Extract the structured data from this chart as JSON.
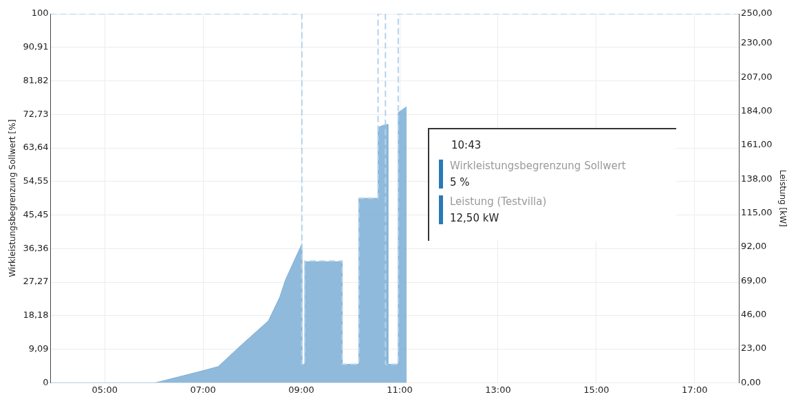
{
  "chart_data": {
    "type": "line",
    "ylabel": "Wirkleistungsbegrenzung Sollwert [%]",
    "y2label": "Leistung [kW]",
    "xlim": [
      3.9,
      17.9
    ],
    "xticks": [
      {
        "value": 5,
        "label": "05:00"
      },
      {
        "value": 7,
        "label": "07:00"
      },
      {
        "value": 9,
        "label": "09:00"
      },
      {
        "value": 11,
        "label": "11:00"
      },
      {
        "value": 13,
        "label": "13:00"
      },
      {
        "value": 15,
        "label": "15:00"
      },
      {
        "value": 17,
        "label": "17:00"
      }
    ],
    "ylim": [
      0,
      100
    ],
    "yticks": [
      0,
      {
        "value": 9.09,
        "label": "9,09"
      },
      {
        "value": 18.18,
        "label": "18,18"
      },
      {
        "value": 27.27,
        "label": "27,27"
      },
      {
        "value": 36.36,
        "label": "36,36"
      },
      {
        "value": 45.45,
        "label": "45,45"
      },
      {
        "value": 54.55,
        "label": "54,55"
      },
      {
        "value": 63.64,
        "label": "63,64"
      },
      {
        "value": 72.73,
        "label": "72,73"
      },
      {
        "value": 81.82,
        "label": "81,82"
      },
      {
        "value": 90.91,
        "label": "90,91"
      },
      100
    ],
    "y2lim": [
      0,
      250
    ],
    "y2ticks": [
      {
        "value": 0,
        "label": "0,00"
      },
      {
        "value": 23,
        "label": "23,00"
      },
      {
        "value": 46,
        "label": "46,00"
      },
      {
        "value": 69,
        "label": "69,00"
      },
      {
        "value": 92,
        "label": "92,00"
      },
      {
        "value": 115,
        "label": "115,00"
      },
      {
        "value": 138,
        "label": "138,00"
      },
      {
        "value": 161,
        "label": "161,00"
      },
      {
        "value": 184,
        "label": "184,00"
      },
      {
        "value": 207,
        "label": "207,00"
      },
      {
        "value": 230,
        "label": "230,00"
      },
      {
        "value": 250,
        "label": "250,00"
      }
    ],
    "grid": true,
    "legend": false,
    "series": [
      {
        "type": "area",
        "axis": "y2",
        "color": "#7fb1d6",
        "x": [
          3.9,
          6.03,
          6.92,
          7.31,
          7.76,
          8.33,
          8.56,
          8.68,
          9.01,
          9.01,
          9.07,
          9.07,
          9.83,
          9.83,
          10.17,
          10.17,
          10.56,
          10.56,
          10.71,
          10.76,
          10.76,
          10.97,
          10.97,
          11.14
        ],
        "values": [
          0,
          0,
          7.5,
          11,
          25,
          42,
          58,
          70,
          94,
          12.5,
          12.5,
          82,
          82,
          12.5,
          12.5,
          125,
          125,
          173,
          175,
          175,
          12.5,
          12.5,
          183,
          187
        ]
      },
      {
        "type": "line",
        "axis": "y",
        "color": "#b4d2ea",
        "line_style": "dashed",
        "x": [
          3.9,
          9.01,
          9.01,
          9.07,
          9.07,
          9.83,
          9.83,
          10.17,
          10.17,
          10.56,
          10.56,
          10.71,
          10.71,
          10.97,
          10.97,
          17.9
        ],
        "values": [
          100,
          100,
          5,
          5,
          33,
          33,
          5,
          5,
          50,
          50,
          100,
          100,
          5,
          5,
          100,
          100
        ]
      }
    ],
    "annotations": [
      "10:43",
      "Wirkleistungsbegrenzung Sollwert",
      "5 %",
      "Leistung (Testvilla)",
      "12,50 kW"
    ]
  }
}
